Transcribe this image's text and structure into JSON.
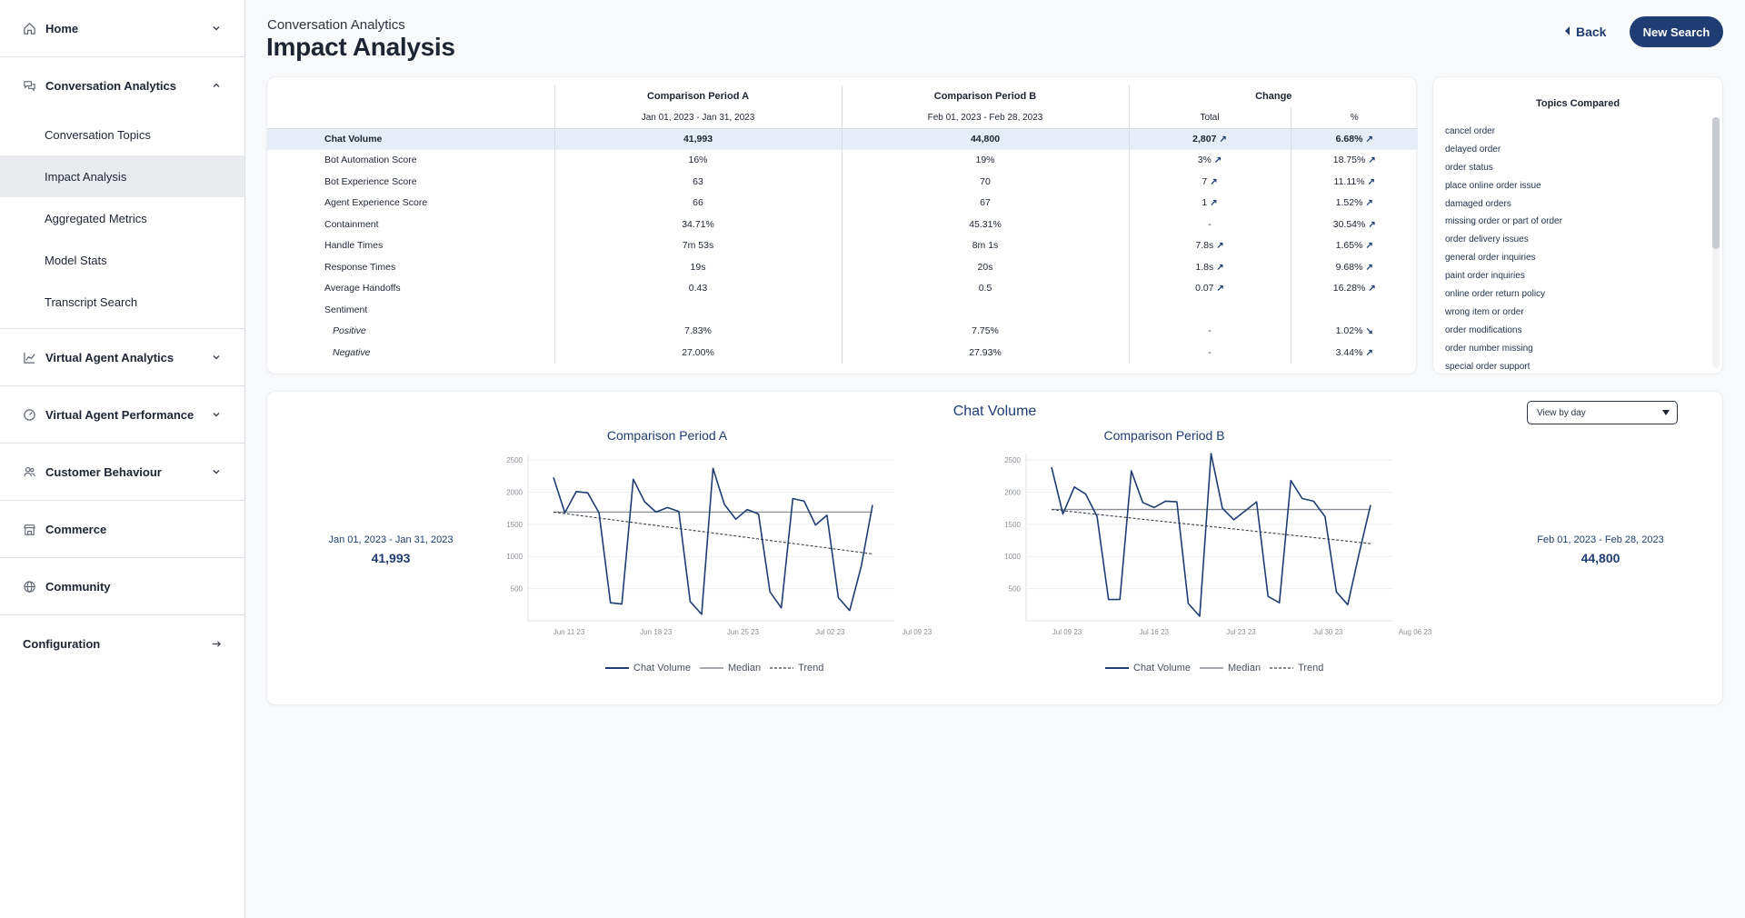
{
  "sidebar": {
    "home": "Home",
    "conversation_analytics": {
      "label": "Conversation Analytics",
      "items": [
        "Conversation Topics",
        "Impact Analysis",
        "Aggregated Metrics",
        "Model Stats",
        "Transcript Search"
      ]
    },
    "virtual_agent_analytics": "Virtual Agent Analytics",
    "virtual_agent_performance": "Virtual Agent Performance",
    "customer_behaviour": "Customer Behaviour",
    "commerce": "Commerce",
    "community": "Community",
    "configuration": "Configuration"
  },
  "header": {
    "breadcrumb": "Conversation Analytics",
    "title": "Impact Analysis",
    "back_label": "Back",
    "new_search_label": "New Search"
  },
  "table": {
    "period_a": "Comparison Period A",
    "period_b": "Comparison Period B",
    "change": "Change",
    "range_a": "Jan 01, 2023 - Jan 31, 2023",
    "range_b": "Feb 01, 2023 - Feb 28, 2023",
    "total": "Total",
    "percent": "%",
    "rows": [
      {
        "metric": "Chat Volume",
        "a": "41,993",
        "b": "44,800",
        "total": "2,807",
        "pct": "6.68%",
        "total_arrow": "up",
        "pct_arrow": "up"
      },
      {
        "metric": "Bot Automation Score",
        "a": "16%",
        "b": "19%",
        "total": "3%",
        "pct": "18.75%",
        "total_arrow": "up",
        "pct_arrow": "up"
      },
      {
        "metric": "Bot Experience Score",
        "a": "63",
        "b": "70",
        "total": "7",
        "pct": "11.11%",
        "total_arrow": "up",
        "pct_arrow": "up"
      },
      {
        "metric": "Agent Experience Score",
        "a": "66",
        "b": "67",
        "total": "1",
        "pct": "1.52%",
        "total_arrow": "up",
        "pct_arrow": "up"
      },
      {
        "metric": "Containment",
        "a": "34.71%",
        "b": "45.31%",
        "total": "-",
        "pct": "30.54%",
        "total_arrow": "",
        "pct_arrow": "up"
      },
      {
        "metric": "Handle Times",
        "a": "7m 53s",
        "b": "8m 1s",
        "total": "7.8s",
        "pct": "1.65%",
        "total_arrow": "up",
        "pct_arrow": "up"
      },
      {
        "metric": "Response Times",
        "a": "19s",
        "b": "20s",
        "total": "1.8s",
        "pct": "9.68%",
        "total_arrow": "up",
        "pct_arrow": "up"
      },
      {
        "metric": "Average Handoffs",
        "a": "0.43",
        "b": "0.5",
        "total": "0.07",
        "pct": "16.28%",
        "total_arrow": "up",
        "pct_arrow": "up"
      },
      {
        "metric": "Sentiment",
        "a": "",
        "b": "",
        "total": "",
        "pct": "",
        "total_arrow": "",
        "pct_arrow": ""
      },
      {
        "metric": "Positive",
        "a": "7.83%",
        "b": "7.75%",
        "total": "-",
        "pct": "1.02%",
        "total_arrow": "",
        "pct_arrow": "down",
        "italic": true
      },
      {
        "metric": "Negative",
        "a": "27.00%",
        "b": "27.93%",
        "total": "-",
        "pct": "3.44%",
        "total_arrow": "",
        "pct_arrow": "up",
        "italic": true
      }
    ]
  },
  "topics": {
    "title": "Topics Compared",
    "items": [
      "cancel order",
      "delayed order",
      "order status",
      "place online order issue",
      "damaged orders",
      "missing order or part of order",
      "order delivery issues",
      "general order inquiries",
      "paint order inquiries",
      "online order return policy",
      "wrong item or order",
      "order modifications",
      "order number missing",
      "special order support"
    ]
  },
  "chart_section": {
    "title": "Chat Volume",
    "view_select": "View by day",
    "kpi_a": {
      "range": "Jan 01, 2023 - Jan 31, 2023",
      "value": "41,993"
    },
    "kpi_b": {
      "range": "Feb 01, 2023 - Feb 28, 2023",
      "value": "44,800"
    },
    "legend": {
      "series": "Chat Volume",
      "median": "Median",
      "trend": "Trend"
    }
  },
  "colors": {
    "accent": "#1f3d73",
    "line": "#1f3d73",
    "median": "#8a8f96",
    "trend": "#3a3f47"
  },
  "chart_data": [
    {
      "type": "line",
      "title": "Comparison Period A",
      "x_ticks": [
        "Jun 11 23",
        "Jun 18 23",
        "Jun 25 23",
        "Jul 02 23",
        "Jul 09 23"
      ],
      "y_ticks": [
        500,
        1000,
        1500,
        2000,
        2500
      ],
      "ylim": [
        0,
        2600
      ],
      "values": [
        2230,
        1680,
        2010,
        1990,
        1680,
        280,
        260,
        2200,
        1850,
        1690,
        1760,
        1700,
        300,
        100,
        2370,
        1810,
        1580,
        1730,
        1660,
        450,
        200,
        1900,
        1860,
        1490,
        1640,
        360,
        160,
        840,
        1800
      ],
      "median": 1690,
      "trend": [
        1690,
        1040
      ],
      "series": [
        {
          "name": "Chat Volume"
        },
        {
          "name": "Median"
        },
        {
          "name": "Trend"
        }
      ]
    },
    {
      "type": "line",
      "title": "Comparison Period B",
      "x_ticks": [
        "Jul 09 23",
        "Jul 16 23",
        "Jul 23 23",
        "Jul 30 23",
        "Aug 06 23"
      ],
      "y_ticks": [
        500,
        1000,
        1500,
        2000,
        2500
      ],
      "ylim": [
        0,
        2600
      ],
      "values": [
        2390,
        1660,
        2080,
        1970,
        1620,
        330,
        330,
        2330,
        1840,
        1760,
        1860,
        1850,
        270,
        70,
        2600,
        1750,
        1570,
        1710,
        1850,
        380,
        280,
        2180,
        1900,
        1860,
        1620,
        450,
        250,
        1050,
        1800
      ],
      "median": 1730,
      "trend": [
        1730,
        1200
      ],
      "series": [
        {
          "name": "Chat Volume"
        },
        {
          "name": "Median"
        },
        {
          "name": "Trend"
        }
      ]
    }
  ]
}
